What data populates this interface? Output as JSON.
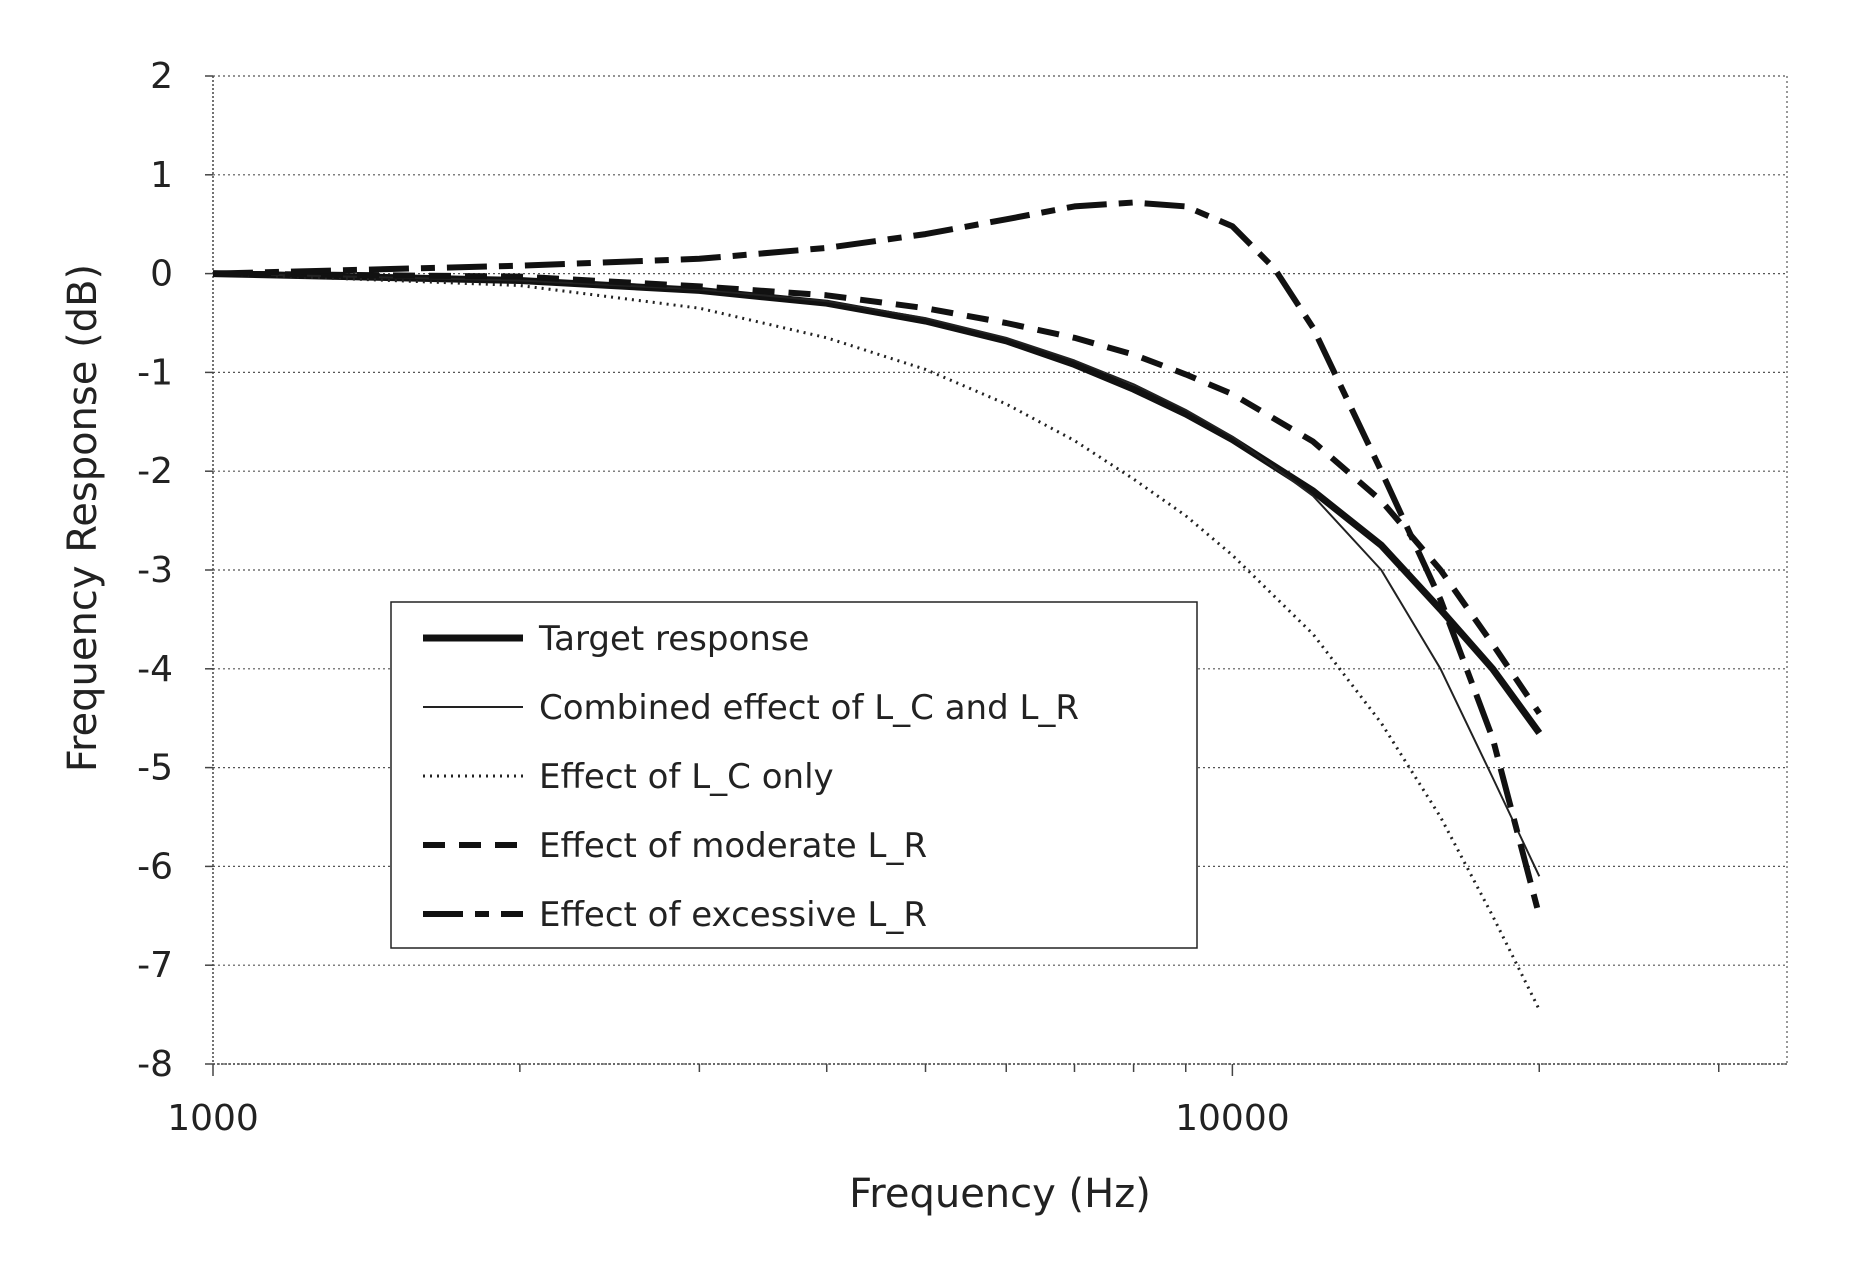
{
  "chart_data": {
    "type": "line",
    "xscale": "log",
    "xlabel": "Frequency (Hz)",
    "ylabel": "Frequency Response (dB)",
    "xlim": [
      1000,
      35000
    ],
    "ylim": [
      -8,
      2
    ],
    "yticks": [
      2,
      1,
      0,
      -1,
      -2,
      -3,
      -4,
      -5,
      -6,
      -7,
      -8
    ],
    "ytick_labels": [
      "2",
      "1",
      "0",
      "-1",
      "-2",
      "-3",
      "-4",
      "-5",
      "-6",
      "-7",
      "-8"
    ],
    "xticks_labeled": [
      1000,
      10000
    ],
    "xtick_labels": [
      "1000",
      "10000"
    ],
    "grid": true,
    "legend_position": "center-left",
    "series": [
      {
        "name": "Target response",
        "style": "thick-solid",
        "x": [
          1000,
          2000,
          3000,
          4000,
          5000,
          6000,
          7000,
          8000,
          9000,
          10000,
          12000,
          14000,
          16000,
          18000,
          20000
        ],
        "y": [
          0,
          -0.07,
          -0.17,
          -0.3,
          -0.48,
          -0.68,
          -0.92,
          -1.17,
          -1.42,
          -1.68,
          -2.2,
          -2.75,
          -3.4,
          -4.0,
          -4.65
        ]
      },
      {
        "name": "Combined effect of L_C and L_R",
        "style": "thin-solid",
        "x": [
          1000,
          2000,
          3000,
          4000,
          5000,
          6000,
          7000,
          8000,
          9000,
          10000,
          12000,
          14000,
          16000,
          18000,
          20000
        ],
        "y": [
          0,
          -0.07,
          -0.16,
          -0.28,
          -0.45,
          -0.65,
          -0.88,
          -1.12,
          -1.38,
          -1.65,
          -2.25,
          -3.0,
          -4.0,
          -5.1,
          -6.1
        ]
      },
      {
        "name": "Effect of L_C only",
        "style": "dotted",
        "x": [
          1000,
          2000,
          3000,
          4000,
          5000,
          6000,
          7000,
          8000,
          9000,
          10000,
          12000,
          14000,
          16000,
          18000,
          20000
        ],
        "y": [
          0,
          -0.12,
          -0.35,
          -0.65,
          -0.97,
          -1.32,
          -1.69,
          -2.08,
          -2.45,
          -2.85,
          -3.65,
          -4.55,
          -5.5,
          -6.5,
          -7.45
        ]
      },
      {
        "name": "Effect of moderate L_R",
        "style": "dashed",
        "x": [
          1000,
          2000,
          3000,
          4000,
          5000,
          6000,
          7000,
          8000,
          9000,
          10000,
          12000,
          14000,
          16000,
          18000,
          20000
        ],
        "y": [
          0,
          -0.03,
          -0.13,
          -0.22,
          -0.35,
          -0.5,
          -0.65,
          -0.82,
          -1.02,
          -1.22,
          -1.7,
          -2.3,
          -3.0,
          -3.75,
          -4.45
        ]
      },
      {
        "name": "Effect of excessive L_R",
        "style": "long-dash",
        "x": [
          1000,
          2000,
          3000,
          4000,
          5000,
          6000,
          7000,
          8000,
          9000,
          10000,
          11000,
          12000,
          14000,
          16000,
          18000,
          20000
        ],
        "y": [
          0,
          0.08,
          0.15,
          0.26,
          0.4,
          0.55,
          0.68,
          0.72,
          0.68,
          0.48,
          0.05,
          -0.55,
          -2.0,
          -3.3,
          -4.7,
          -6.5
        ]
      }
    ]
  }
}
